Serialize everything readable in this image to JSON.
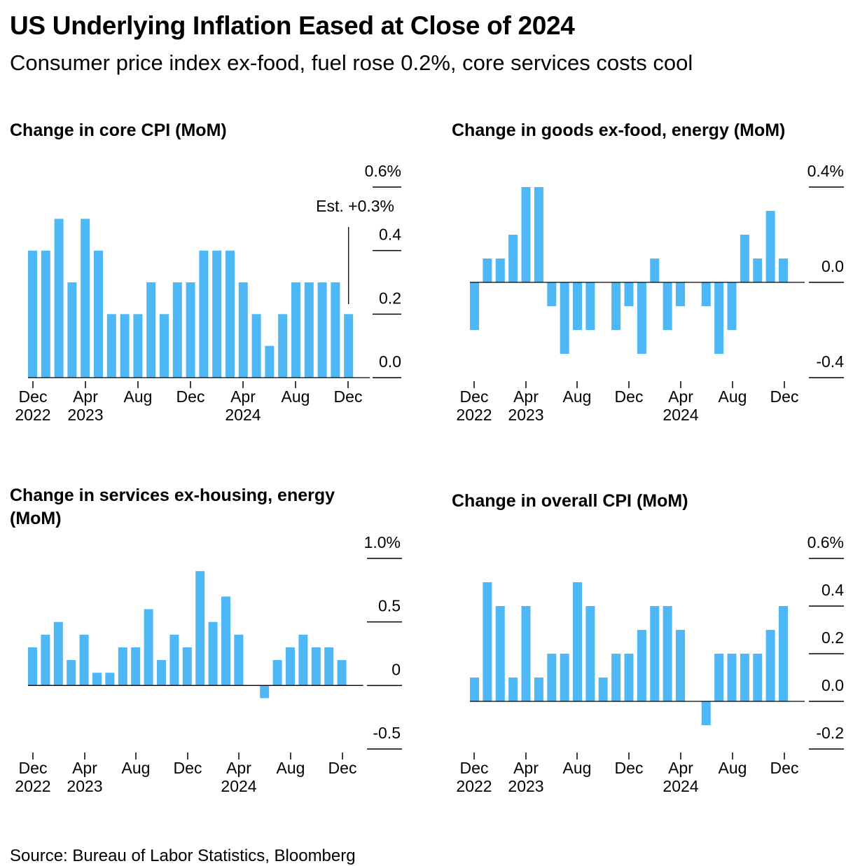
{
  "title": "US Underlying Inflation Eased at Close of 2024",
  "subtitle": "Consumer price index ex-food, fuel rose 0.2%, core services costs cool",
  "source": "Source: Bureau of Labor Statistics, Bloomberg",
  "bar_color": "#4DB8F5",
  "x_tick_labels": [
    {
      "month": "Dec",
      "year": "2022"
    },
    {
      "month": "Apr",
      "year": "2023"
    },
    {
      "month": "Aug",
      "year": ""
    },
    {
      "month": "Dec",
      "year": ""
    },
    {
      "month": "Apr",
      "year": "2024"
    },
    {
      "month": "Aug",
      "year": ""
    },
    {
      "month": "Dec",
      "year": ""
    }
  ],
  "chart_data": [
    {
      "type": "bar",
      "title": "Change in core CPI (MoM)",
      "x_start": "Dec 2022",
      "x_end": "Dec 2024",
      "values": [
        0.4,
        0.4,
        0.5,
        0.3,
        0.5,
        0.4,
        0.2,
        0.2,
        0.2,
        0.3,
        0.2,
        0.3,
        0.3,
        0.4,
        0.4,
        0.4,
        0.3,
        0.2,
        0.1,
        0.2,
        0.3,
        0.3,
        0.3,
        0.3,
        0.2
      ],
      "ylim": [
        0,
        0.6
      ],
      "y_ticks": [
        0.0,
        0.2,
        0.4,
        0.6
      ],
      "y_tick_labels": [
        "0.0",
        "0.2",
        "0.4",
        "0.6%"
      ],
      "annotation": "Est. +0.3%"
    },
    {
      "type": "bar",
      "title": "Change in goods ex-food, energy (MoM)",
      "x_start": "Dec 2022",
      "x_end": "Dec 2024",
      "values": [
        -0.2,
        0.1,
        0.1,
        0.2,
        0.4,
        0.4,
        -0.1,
        -0.3,
        -0.2,
        -0.2,
        0.0,
        -0.2,
        -0.1,
        -0.3,
        0.1,
        -0.2,
        -0.1,
        0.0,
        -0.1,
        -0.3,
        -0.2,
        0.2,
        0.1,
        0.3,
        0.1
      ],
      "ylim": [
        -0.4,
        0.4
      ],
      "y_ticks": [
        -0.4,
        0.0,
        0.4
      ],
      "y_tick_labels": [
        "-0.4",
        "0.0",
        "0.4%"
      ]
    },
    {
      "type": "bar",
      "title": "Change in services ex-housing, energy (MoM)",
      "x_start": "Dec 2022",
      "x_end": "Dec 2024",
      "values": [
        0.3,
        0.4,
        0.5,
        0.2,
        0.4,
        0.1,
        0.1,
        0.3,
        0.3,
        0.6,
        0.2,
        0.4,
        0.3,
        0.9,
        0.5,
        0.7,
        0.4,
        0.0,
        -0.1,
        0.2,
        0.3,
        0.4,
        0.3,
        0.3,
        0.2
      ],
      "ylim": [
        -0.5,
        1.0
      ],
      "y_ticks": [
        -0.5,
        0,
        0.5,
        1.0
      ],
      "y_tick_labels": [
        "-0.5",
        "0",
        "0.5",
        "1.0%"
      ]
    },
    {
      "type": "bar",
      "title": "Change in overall CPI (MoM)",
      "x_start": "Dec 2022",
      "x_end": "Dec 2024",
      "values": [
        0.1,
        0.5,
        0.4,
        0.1,
        0.4,
        0.1,
        0.2,
        0.2,
        0.5,
        0.4,
        0.1,
        0.2,
        0.2,
        0.3,
        0.4,
        0.4,
        0.3,
        0.0,
        -0.1,
        0.2,
        0.2,
        0.2,
        0.2,
        0.3,
        0.4
      ],
      "ylim": [
        -0.2,
        0.6
      ],
      "y_ticks": [
        -0.2,
        0.0,
        0.2,
        0.4,
        0.6
      ],
      "y_tick_labels": [
        "-0.2",
        "0.0",
        "0.2",
        "0.4",
        "0.6%"
      ]
    }
  ]
}
